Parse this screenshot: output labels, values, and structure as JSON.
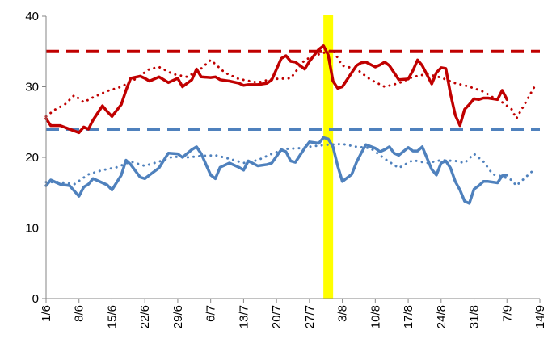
{
  "chart_data": {
    "type": "line",
    "title": "",
    "xlabel": "",
    "ylabel": "",
    "ylim": [
      0,
      40
    ],
    "xlim": [
      0,
      105
    ],
    "y_ticks": [
      "0",
      "10",
      "20",
      "30",
      "40"
    ],
    "y_tick_values": [
      0,
      10,
      20,
      30,
      40
    ],
    "x_ticks": [
      "1/6",
      "8/6",
      "15/6",
      "22/6",
      "29/6",
      "6/7",
      "13/7",
      "20/7",
      "27/7",
      "3/8",
      "10/8",
      "17/8",
      "24/8",
      "31/8",
      "7/9",
      "14/9"
    ],
    "x_tick_values": [
      0,
      7,
      14,
      21,
      28,
      35,
      42,
      49,
      56,
      63,
      70,
      77,
      84,
      91,
      98,
      105
    ],
    "grid": false,
    "legend": "none",
    "reference_lines": [
      {
        "value": 35,
        "color": "#c00000",
        "style": "dashed"
      },
      {
        "value": 24,
        "color": "#4f81bd",
        "style": "dashed"
      }
    ],
    "highlight": {
      "x": 60,
      "color": "#ffff00"
    },
    "series": [
      {
        "color": "#c00000",
        "style": "solid",
        "x": [
          0,
          1,
          3,
          5,
          7,
          8,
          9,
          10,
          12,
          13,
          14,
          16,
          17,
          18,
          20,
          21,
          22,
          24,
          26,
          28,
          29,
          31,
          32,
          33,
          35,
          36,
          37,
          39,
          41,
          42,
          43,
          45,
          47,
          48,
          50,
          51,
          52,
          53,
          55,
          56,
          58,
          59,
          60,
          61,
          62,
          63,
          65,
          66,
          67,
          68,
          70,
          71,
          72,
          73,
          74,
          75,
          77,
          78,
          79,
          80,
          82,
          83,
          84,
          85,
          86,
          87,
          88,
          89,
          90,
          91,
          92,
          93,
          94,
          96,
          97,
          98
        ],
        "y": [
          25.5,
          24.5,
          24.5,
          24,
          23.5,
          24.3,
          24,
          25.3,
          27.3,
          26.5,
          25.8,
          27.5,
          29.5,
          31.2,
          31.5,
          31.2,
          30.8,
          31.4,
          30.6,
          31.2,
          30,
          31,
          32.5,
          31.4,
          31.3,
          31.4,
          31,
          30.8,
          30.5,
          30.2,
          30.3,
          30.3,
          30.5,
          31,
          34,
          34.4,
          33.6,
          33.5,
          32.5,
          33.6,
          35.3,
          35.8,
          34.5,
          30.8,
          29.8,
          30,
          32,
          33,
          33.4,
          33.5,
          32.8,
          33.1,
          33.5,
          33,
          32,
          31,
          31.1,
          32.3,
          33.8,
          33,
          30.4,
          32,
          32.7,
          32.6,
          29,
          26,
          24.5,
          26.8,
          27.5,
          28.3,
          28.2,
          28.4,
          28.4,
          28.2,
          29.5,
          28.2
        ]
      },
      {
        "color": "#c00000",
        "style": "dotted",
        "x": [
          0,
          2,
          4,
          6,
          8,
          10,
          13,
          16,
          19,
          22,
          24,
          27,
          30,
          33,
          35,
          38,
          41,
          45,
          48,
          52,
          55,
          58,
          61,
          63,
          66,
          69,
          72,
          75,
          78,
          81,
          84,
          87,
          89,
          91,
          93,
          95,
          97,
          99,
          100,
          102,
          104
        ],
        "y": [
          25.8,
          26.8,
          27.5,
          28.8,
          27.8,
          28.5,
          29.4,
          30,
          31.1,
          32.5,
          32.8,
          31.8,
          31.4,
          32.6,
          33.8,
          32,
          31.1,
          30.6,
          31.1,
          31.2,
          33.8,
          34.6,
          35.2,
          33,
          32.5,
          31,
          30,
          30.5,
          31.4,
          31.8,
          31.3,
          30.5,
          30.2,
          29.8,
          29.3,
          28.5,
          27.8,
          26.8,
          25.5,
          27.8,
          30.2
        ]
      },
      {
        "color": "#4f81bd",
        "style": "solid",
        "x": [
          0,
          1,
          3,
          5,
          7,
          8,
          9,
          10,
          12,
          13,
          14,
          16,
          17,
          18,
          20,
          21,
          22,
          24,
          26,
          28,
          29,
          31,
          32,
          33,
          35,
          36,
          37,
          39,
          41,
          42,
          43,
          45,
          47,
          48,
          50,
          51,
          52,
          53,
          55,
          56,
          58,
          59,
          60,
          61,
          62,
          63,
          65,
          66,
          67,
          68,
          70,
          71,
          72,
          73,
          74,
          75,
          77,
          78,
          79,
          80,
          82,
          83,
          84,
          85,
          86,
          87,
          88,
          89,
          90,
          91,
          92,
          93,
          94,
          96,
          97,
          98
        ],
        "y": [
          16,
          16.8,
          16.2,
          16,
          14.5,
          15.8,
          16.2,
          17,
          16.4,
          16.1,
          15.4,
          17.5,
          19.6,
          19,
          17.2,
          17,
          17.5,
          18.5,
          20.6,
          20.5,
          20,
          21.1,
          21.5,
          20.5,
          17.5,
          17,
          18.6,
          19.2,
          18.6,
          18.2,
          19.5,
          18.8,
          19,
          19.2,
          21.1,
          20.8,
          19.5,
          19.3,
          21.3,
          22.2,
          22,
          22.8,
          22.6,
          21.5,
          18.8,
          16.6,
          17.6,
          19.3,
          20.6,
          21.8,
          21.3,
          20.8,
          21.1,
          21.5,
          20.6,
          20.3,
          21.4,
          20.9,
          20.9,
          21.5,
          18.3,
          17.5,
          19.2,
          19.5,
          18.5,
          16.6,
          15.4,
          13.8,
          13.5,
          15.5,
          16,
          16.6,
          16.6,
          16.4,
          17.4,
          17.5
        ]
      },
      {
        "color": "#4f81bd",
        "style": "dotted",
        "x": [
          0,
          3,
          6,
          9,
          12,
          15,
          18,
          21,
          24,
          27,
          30,
          33,
          36,
          39,
          42,
          45,
          48,
          51,
          54,
          57,
          60,
          63,
          66,
          69,
          72,
          75,
          78,
          81,
          84,
          87,
          89,
          91,
          93,
          95,
          97,
          99,
          100,
          102,
          104
        ],
        "y": [
          16.5,
          16.5,
          16.2,
          17.6,
          18.2,
          18.6,
          19.4,
          18.8,
          19.4,
          20.1,
          20,
          20.2,
          20.3,
          19.8,
          19.2,
          19.6,
          20.5,
          21.2,
          21.3,
          21.6,
          21.8,
          21.9,
          21.5,
          21.3,
          19.8,
          18.5,
          19.6,
          19.2,
          19.6,
          19.5,
          19.2,
          20.5,
          19.4,
          17.6,
          17.3,
          16.8,
          16,
          17.2,
          18.4
        ]
      }
    ]
  }
}
